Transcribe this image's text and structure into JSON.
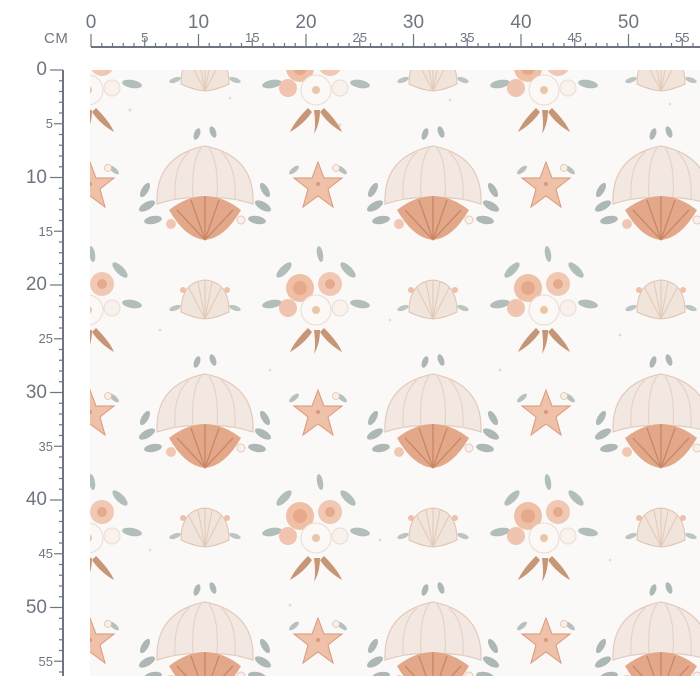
{
  "ruler": {
    "unit": "CM",
    "major_labels": [
      "0",
      "10",
      "20",
      "30",
      "40",
      "50"
    ],
    "minor_labels": [
      "5",
      "15",
      "25",
      "35",
      "45",
      "55"
    ],
    "color": "#6f7580"
  },
  "fabric": {
    "motifs": [
      "scallop-shell-bouquet",
      "starfish",
      "rose-bouquet",
      "small-shell"
    ],
    "palette": {
      "peach": "#e9b59c",
      "terracotta": "#d08f6e",
      "cream": "#f3e6dd",
      "sage": "#9aa9a6",
      "brown": "#b98c6e"
    }
  }
}
